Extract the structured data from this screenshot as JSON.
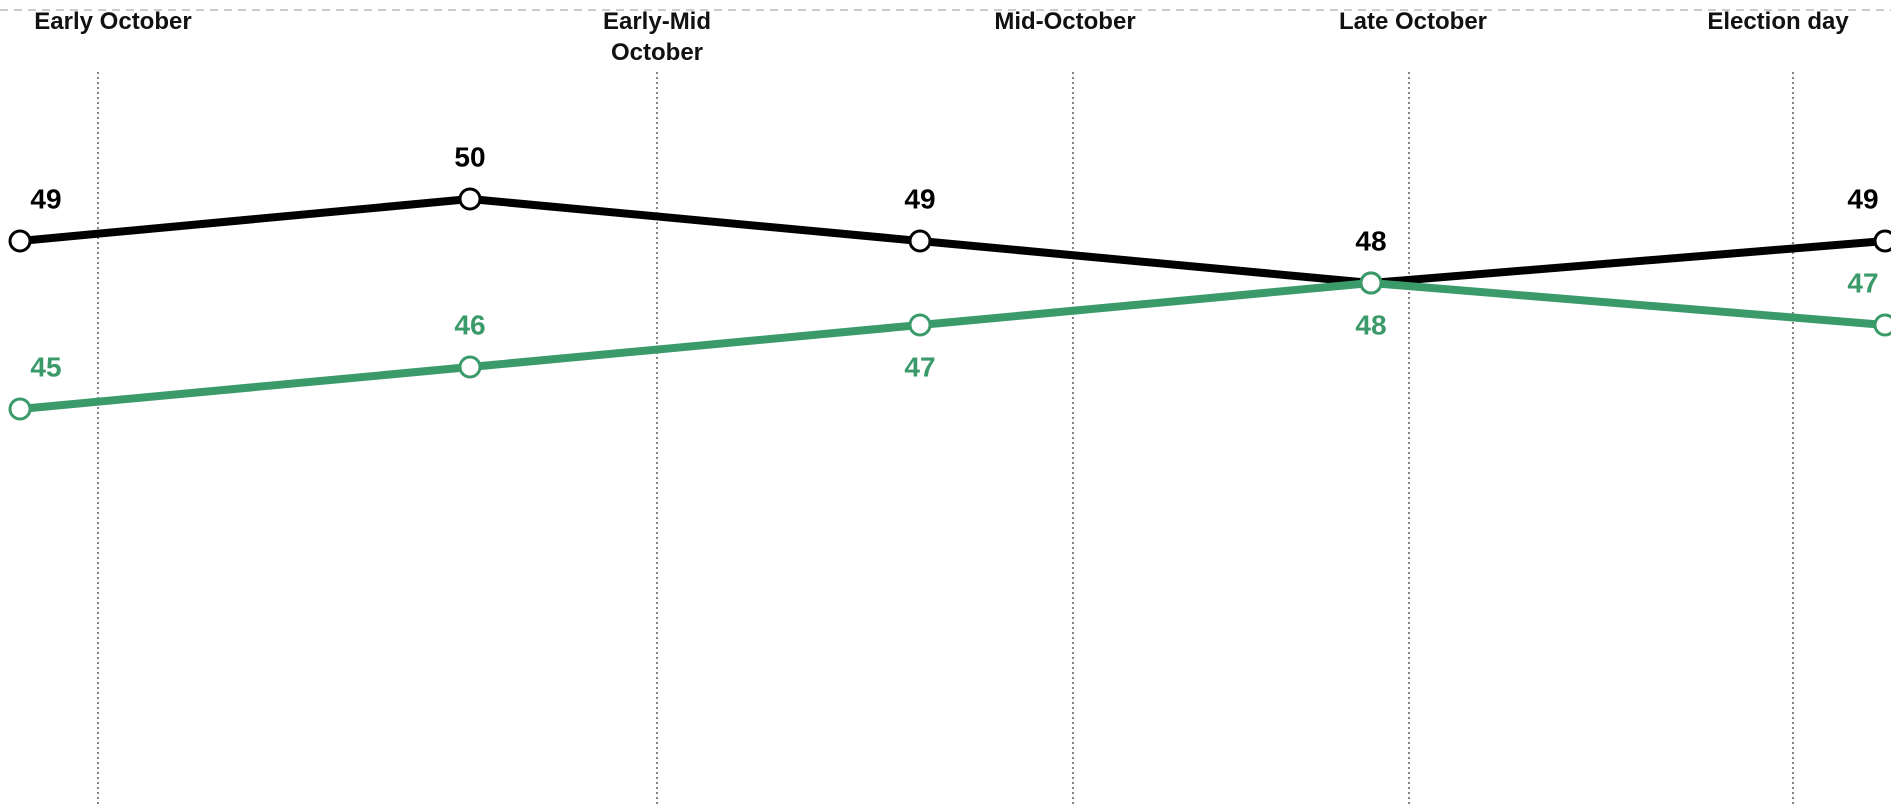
{
  "chart_data": {
    "type": "line",
    "categories": [
      "Early October",
      "Early-Mid October",
      "Mid-October",
      "Late October",
      "Election day"
    ],
    "series": [
      {
        "color": "#000000",
        "values": [
          49,
          50,
          49,
          48,
          49
        ]
      },
      {
        "color": "#3a9a6a",
        "values": [
          45,
          46,
          47,
          48,
          47
        ]
      }
    ],
    "ylim": [
      36,
      54
    ]
  }
}
